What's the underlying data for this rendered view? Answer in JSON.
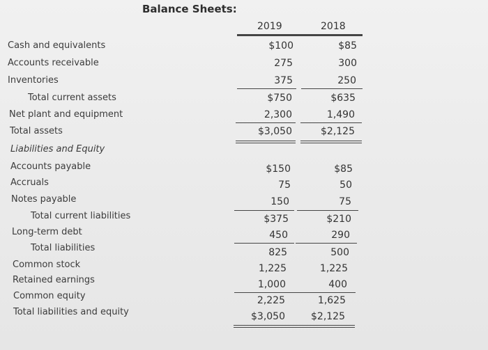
{
  "title": "Balance Sheets:",
  "years": [
    "2019",
    "2018"
  ],
  "rows": [
    {
      "label": "Cash and equivalents",
      "v2019": "$100",
      "v2018": "$85"
    },
    {
      "label": "Accounts receivable",
      "v2019": "275",
      "v2018": "300"
    },
    {
      "label": "Inventories",
      "v2019": "375",
      "v2018": "250"
    },
    {
      "label": "Total current assets",
      "v2019": "$750",
      "v2018": "$635"
    },
    {
      "label": "Net plant and equipment",
      "v2019": "2,300",
      "v2018": "1,490"
    },
    {
      "label": "Total assets",
      "v2019": "$3,050",
      "v2018": "$2,125"
    },
    {
      "label": "Liabilities and Equity",
      "v2019": "",
      "v2018": ""
    },
    {
      "label": "Accounts payable",
      "v2019": "$150",
      "v2018": "$85"
    },
    {
      "label": "Accruals",
      "v2019": "75",
      "v2018": "50"
    },
    {
      "label": "Notes payable",
      "v2019": "150",
      "v2018": "75"
    },
    {
      "label": "Total current liabilities",
      "v2019": "$375",
      "v2018": "$210"
    },
    {
      "label": "Long-term debt",
      "v2019": "450",
      "v2018": "290"
    },
    {
      "label": "Total liabilities",
      "v2019": "825",
      "v2018": "500"
    },
    {
      "label": "Common stock",
      "v2019": "1,225",
      "v2018": "1,225"
    },
    {
      "label": "Retained earnings",
      "v2019": "1,000",
      "v2018": "400"
    },
    {
      "label": "Common equity",
      "v2019": "2,225",
      "v2018": "1,625"
    },
    {
      "label": "Total liabilities and equity",
      "v2019": "$3,050",
      "v2018": "$2,125"
    }
  ]
}
